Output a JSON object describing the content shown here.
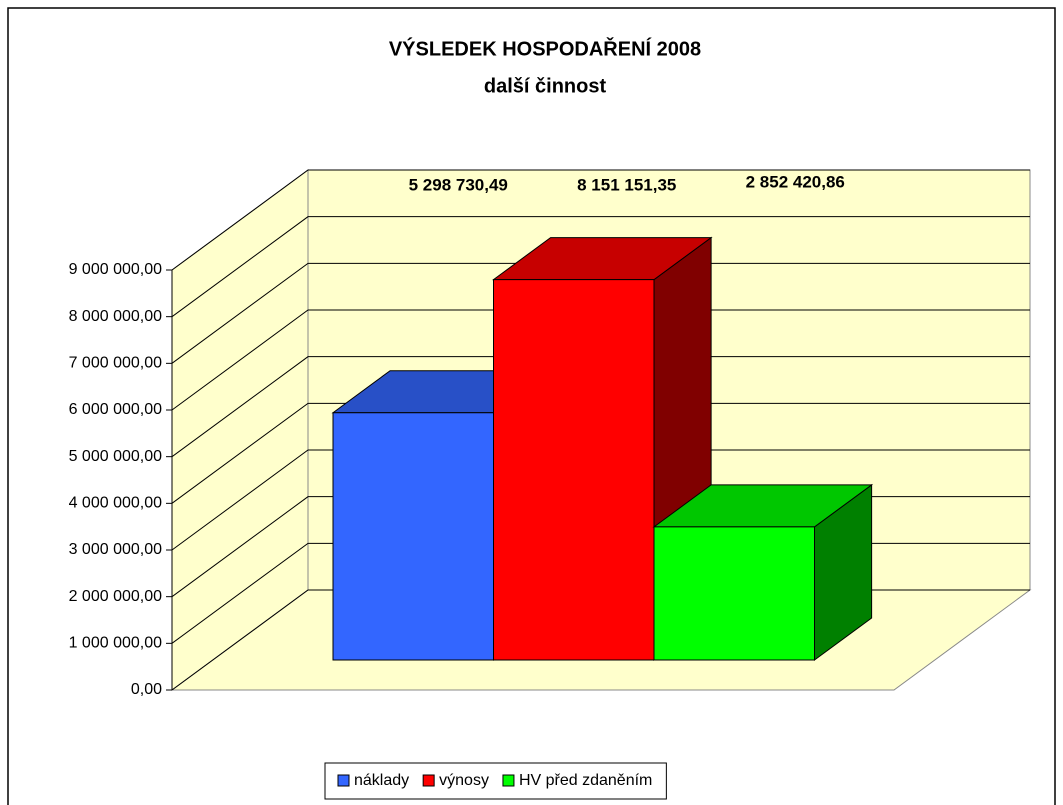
{
  "chart_data": {
    "type": "bar3d",
    "title": "VÝSLEDEK HOSPODAŘENÍ 2008",
    "subtitle": "další činnost",
    "series": [
      {
        "name": "náklady",
        "color": "#3366ff",
        "values": [
          5298730.49
        ],
        "value_labels": [
          "5 298 730,49"
        ]
      },
      {
        "name": "výnosy",
        "color": "#ff0000",
        "values": [
          8151151.35
        ],
        "value_labels": [
          "8 151 151,35"
        ]
      },
      {
        "name": "HV před zdaněním",
        "color": "#00ff00",
        "values": [
          2852420.86
        ],
        "value_labels": [
          "2 852 420,86"
        ]
      }
    ],
    "ylim": [
      0,
      9000000
    ],
    "yticks": [
      {
        "value": 0,
        "label": "0,00"
      },
      {
        "value": 1000000,
        "label": "1 000 000,00"
      },
      {
        "value": 2000000,
        "label": "2 000 000,00"
      },
      {
        "value": 3000000,
        "label": "3 000 000,00"
      },
      {
        "value": 4000000,
        "label": "4 000 000,00"
      },
      {
        "value": 5000000,
        "label": "5 000 000,00"
      },
      {
        "value": 6000000,
        "label": "6 000 000,00"
      },
      {
        "value": 7000000,
        "label": "7 000 000,00"
      },
      {
        "value": 8000000,
        "label": "8 000 000,00"
      },
      {
        "value": 9000000,
        "label": "9 000 000,00"
      }
    ],
    "grid": true,
    "legend": "bottom"
  }
}
